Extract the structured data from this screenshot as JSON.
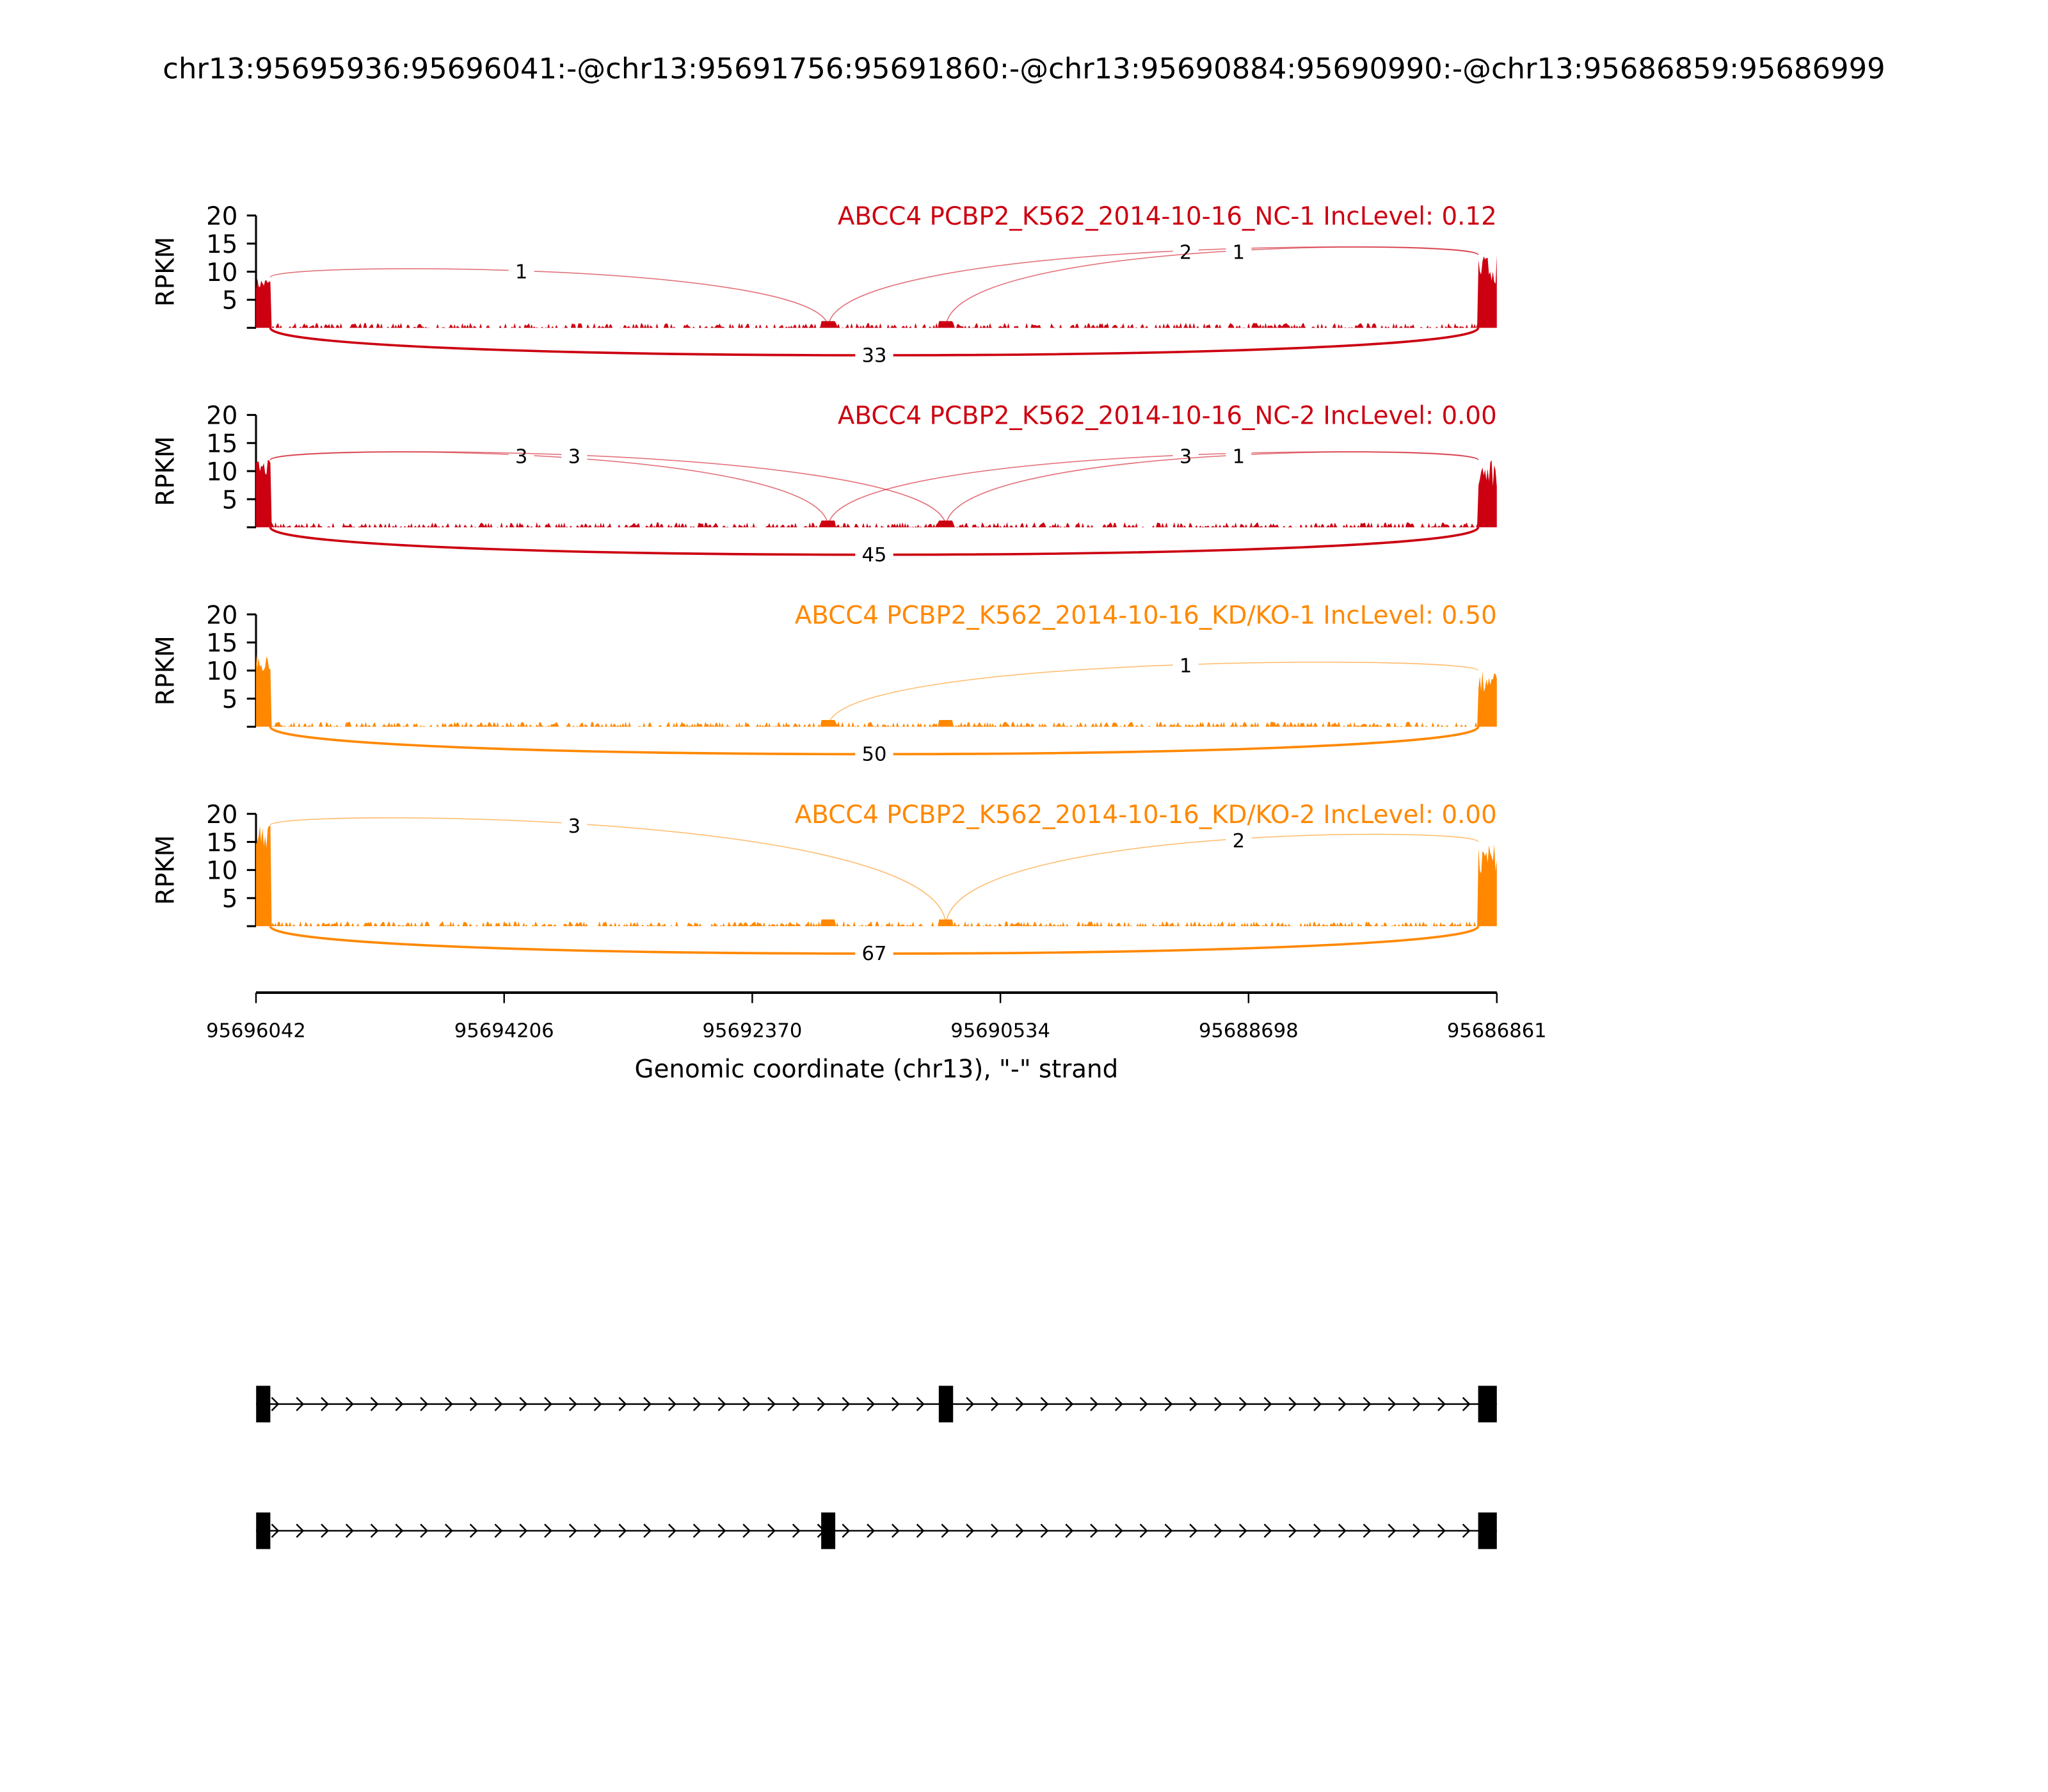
{
  "title": "chr13:95695936:95696041:-@chr13:95691756:95691860:-@chr13:95690884:95690990:-@chr13:95686859:95686999",
  "chart_data": {
    "type": "sashimi",
    "xlabel": "Genomic coordinate (chr13), \"-\" strand",
    "ylabel": "RPKM",
    "xlim": [
      95696042,
      95686861
    ],
    "xticks": [
      "95696042",
      "95694206",
      "95692370",
      "95690534",
      "95688698",
      "95686861"
    ],
    "ylim": [
      0,
      20
    ],
    "yticks": [
      "5",
      "10",
      "15",
      "20"
    ],
    "exons": {
      "e1": [
        95695936,
        95696041
      ],
      "e2": [
        95691756,
        95691860
      ],
      "e3": [
        95690884,
        95690990
      ],
      "e4": [
        95686859,
        95686999
      ]
    },
    "samples": [
      {
        "label": "ABCC4 PCBP2_K562_2014-10-16_NC-1 IncLevel: 0.12",
        "color": "#cc0011",
        "exon_peak_rpkm": {
          "e1": 9,
          "e4": 13
        },
        "intron_rpkm": 1,
        "junctions": [
          {
            "from": "e1",
            "to": "e2",
            "count": "1",
            "side": "top"
          },
          {
            "from": "e2",
            "to": "e4",
            "count": "2",
            "side": "top"
          },
          {
            "from": "e3",
            "to": "e4",
            "count": "1",
            "side": "top"
          },
          {
            "from": "e1",
            "to": "e4",
            "count": "33",
            "side": "bottom"
          }
        ]
      },
      {
        "label": "ABCC4 PCBP2_K562_2014-10-16_NC-2 IncLevel: 0.00",
        "color": "#cc0011",
        "exon_peak_rpkm": {
          "e1": 12,
          "e4": 12
        },
        "intron_rpkm": 1,
        "junctions": [
          {
            "from": "e1",
            "to": "e2",
            "count": "3",
            "side": "top"
          },
          {
            "from": "e1",
            "to": "e3",
            "count": "3",
            "side": "top"
          },
          {
            "from": "e2",
            "to": "e4",
            "count": "3",
            "side": "top"
          },
          {
            "from": "e3",
            "to": "e4",
            "count": "1",
            "side": "top"
          },
          {
            "from": "e1",
            "to": "e4",
            "count": "45",
            "side": "bottom"
          }
        ]
      },
      {
        "label": "ABCC4 PCBP2_K562_2014-10-16_KD/KO-1 IncLevel: 0.50",
        "color": "#ff8800",
        "exon_peak_rpkm": {
          "e1": 13,
          "e4": 10
        },
        "intron_rpkm": 1,
        "junctions": [
          {
            "from": "e2",
            "to": "e4",
            "count": "1",
            "side": "top"
          },
          {
            "from": "e1",
            "to": "e4",
            "count": "50",
            "side": "bottom"
          }
        ]
      },
      {
        "label": "ABCC4 PCBP2_K562_2014-10-16_KD/KO-2 IncLevel: 0.00",
        "color": "#ff8800",
        "exon_peak_rpkm": {
          "e1": 18,
          "e4": 15
        },
        "intron_rpkm": 1,
        "junctions": [
          {
            "from": "e1",
            "to": "e3",
            "count": "3",
            "side": "top"
          },
          {
            "from": "e3",
            "to": "e4",
            "count": "2",
            "side": "top"
          },
          {
            "from": "e1",
            "to": "e4",
            "count": "67",
            "side": "bottom"
          }
        ]
      }
    ],
    "isoforms": [
      [
        "e1",
        "e3",
        "e4"
      ],
      [
        "e1",
        "e2",
        "e4"
      ]
    ]
  }
}
